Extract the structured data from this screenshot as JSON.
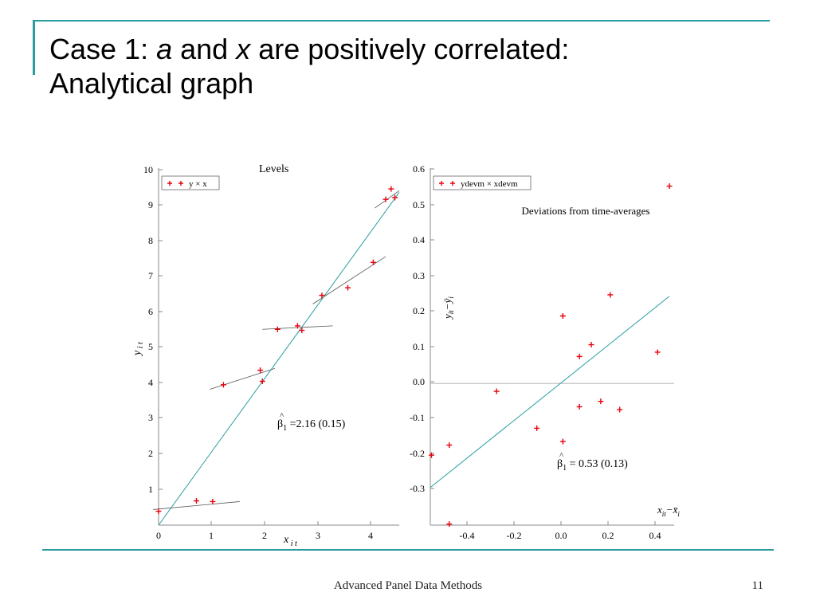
{
  "slide": {
    "title_line1_parts": [
      "Case 1: ",
      "a",
      " and ",
      "x",
      " are positively correlated:"
    ],
    "title_line2": "Analytical graph",
    "footer_text": "Advanced Panel Data Methods",
    "page_number": "11",
    "accent_color": "#2a9d9f"
  },
  "chart_data": [
    {
      "type": "scatter",
      "title": "Levels",
      "xlabel_main": "x",
      "xlabel_sub": "i t",
      "ylabel_main": "y",
      "ylabel_sub": "i t",
      "xlim": [
        0,
        4.45
      ],
      "ylim": [
        -0.1,
        10.2
      ],
      "xticks": [
        "0",
        "1",
        "2",
        "3",
        "4"
      ],
      "yticks": [
        "1",
        "2",
        "3",
        "4",
        "5",
        "6",
        "7",
        "8",
        "9",
        "10"
      ],
      "legend": {
        "label": "y × x",
        "position": "top-left"
      },
      "series": [
        {
          "marker": "+",
          "color": "#e8000b",
          "points": [
            {
              "x": 0.0,
              "y": 0.3
            },
            {
              "x": 0.7,
              "y": 0.6
            },
            {
              "x": 1.0,
              "y": 0.58
            },
            {
              "x": 1.2,
              "y": 3.95
            },
            {
              "x": 1.88,
              "y": 4.37
            },
            {
              "x": 1.92,
              "y": 4.05
            },
            {
              "x": 2.2,
              "y": 5.55
            },
            {
              "x": 2.57,
              "y": 5.65
            },
            {
              "x": 2.65,
              "y": 5.52
            },
            {
              "x": 3.02,
              "y": 6.53
            },
            {
              "x": 3.5,
              "y": 6.75
            },
            {
              "x": 3.97,
              "y": 7.48
            },
            {
              "x": 4.2,
              "y": 9.3
            },
            {
              "x": 4.3,
              "y": 9.6
            },
            {
              "x": 4.37,
              "y": 9.35
            }
          ]
        }
      ],
      "fit_line": {
        "x1": 0.0,
        "y1": -0.1,
        "x2": 4.45,
        "y2": 9.5,
        "color": "#2a9d9f"
      },
      "group_lines": [
        {
          "x1": -0.1,
          "y1": 0.35,
          "x2": 1.5,
          "y2": 0.58
        },
        {
          "x1": 0.95,
          "y1": 3.82,
          "x2": 2.15,
          "y2": 4.42
        },
        {
          "x1": 1.92,
          "y1": 5.55,
          "x2": 3.22,
          "y2": 5.65
        },
        {
          "x1": 2.85,
          "y1": 6.28,
          "x2": 4.2,
          "y2": 7.65
        },
        {
          "x1": 4.0,
          "y1": 9.05,
          "x2": 4.45,
          "y2": 9.55
        }
      ],
      "annotation": {
        "symbol": "β",
        "sub": "1",
        "text": "=2.16 (0.15)"
      }
    },
    {
      "type": "scatter",
      "title": "Deviations from time-averages",
      "xlabel": "x_it − x̄_i",
      "ylabel": "y_it − ȳ_i",
      "xlim": [
        -0.55,
        0.48
      ],
      "ylim": [
        -0.395,
        0.6
      ],
      "xticks": [
        "-0.4",
        "-0.2",
        "0.0",
        "0.2",
        "0.4"
      ],
      "yticks": [
        "-0.3",
        "-0.2",
        "-0.1",
        "0.0",
        "0.1",
        "0.2",
        "0.3",
        "0.4",
        "0.5",
        "0.6"
      ],
      "legend": {
        "label": "ydevm × xdevm",
        "position": "top-left"
      },
      "series": [
        {
          "marker": "+",
          "color": "#e8000b",
          "points": [
            {
              "x": -0.545,
              "y": -0.2
            },
            {
              "x": -0.47,
              "y": -0.172
            },
            {
              "x": -0.47,
              "y": -0.392
            },
            {
              "x": -0.27,
              "y": -0.022
            },
            {
              "x": -0.1,
              "y": -0.125
            },
            {
              "x": 0.01,
              "y": 0.188
            },
            {
              "x": 0.01,
              "y": -0.162
            },
            {
              "x": 0.08,
              "y": 0.075
            },
            {
              "x": 0.08,
              "y": -0.065
            },
            {
              "x": 0.13,
              "y": 0.108
            },
            {
              "x": 0.17,
              "y": -0.05
            },
            {
              "x": 0.21,
              "y": 0.247
            },
            {
              "x": 0.25,
              "y": -0.073
            },
            {
              "x": 0.41,
              "y": 0.087
            },
            {
              "x": 0.46,
              "y": 0.55
            }
          ]
        }
      ],
      "fit_line": {
        "x1": -0.55,
        "y1": -0.29,
        "x2": 0.46,
        "y2": 0.243,
        "color": "#2a9d9f"
      },
      "zero_line": {
        "y": 0.0
      },
      "annotation": {
        "symbol": "β",
        "sub": "1",
        "text": "= 0.53 (0.13)"
      }
    }
  ]
}
